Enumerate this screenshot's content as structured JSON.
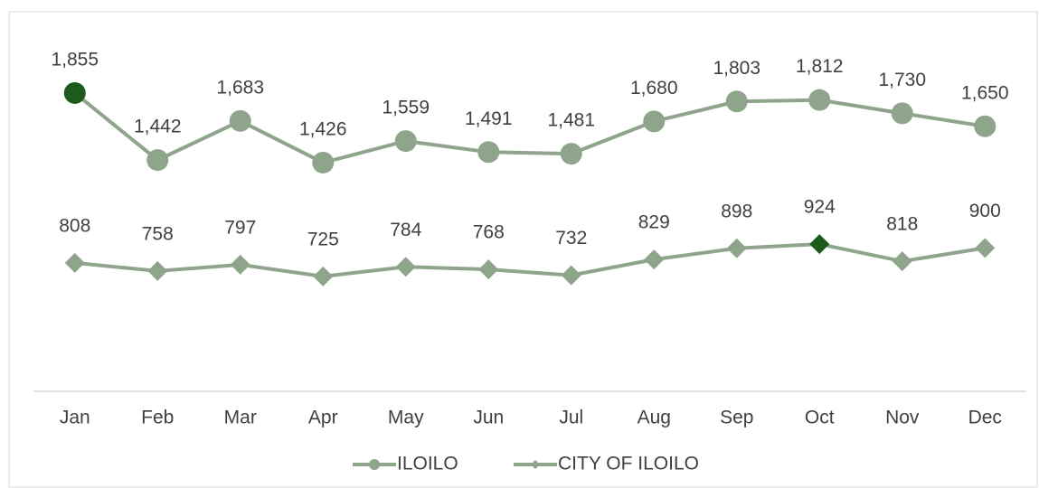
{
  "chart_data": {
    "type": "line",
    "categories": [
      "Jan",
      "Feb",
      "Mar",
      "Apr",
      "May",
      "Jun",
      "Jul",
      "Aug",
      "Sep",
      "Oct",
      "Nov",
      "Dec"
    ],
    "series": [
      {
        "name": "ILOILO",
        "color": "#8ea58b",
        "marker": "circle",
        "highlight_index": 0,
        "highlight_color": "#1c5a1e",
        "values": [
          1855,
          1442,
          1683,
          1426,
          1559,
          1491,
          1481,
          1680,
          1803,
          1812,
          1730,
          1650
        ],
        "value_labels": [
          "1,855",
          "1,442",
          "1,683",
          "1,426",
          "1,559",
          "1,491",
          "1,481",
          "1,680",
          "1,803",
          "1,812",
          "1,730",
          "1,650"
        ]
      },
      {
        "name": "CITY OF ILOILO",
        "color": "#8ea58b",
        "marker": "diamond",
        "highlight_index": 9,
        "highlight_color": "#1c5a1e",
        "values": [
          808,
          758,
          797,
          725,
          784,
          768,
          732,
          829,
          898,
          924,
          818,
          900
        ]
      }
    ],
    "ylim": [
      0,
      2200
    ],
    "grid": false,
    "legend": "bottom"
  }
}
